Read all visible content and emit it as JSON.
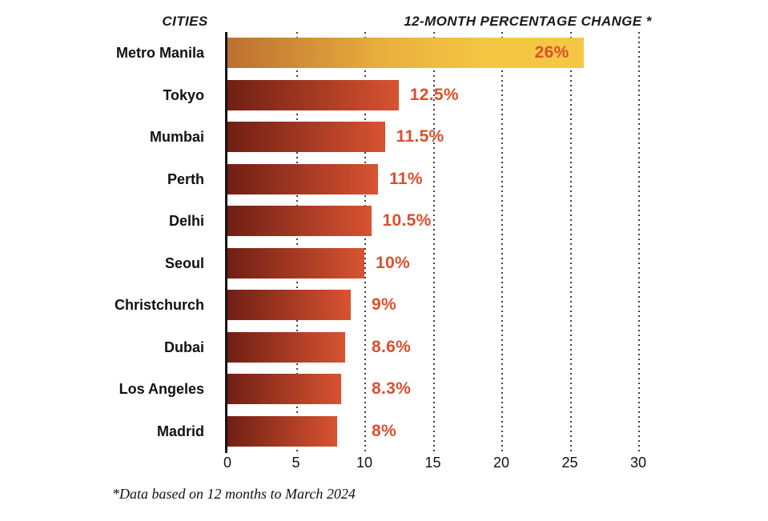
{
  "header": {
    "left_label": "CITIES",
    "right_label": "12-MONTH PERCENTAGE CHANGE *"
  },
  "footnote": "*Data based on 12 months to March 2024",
  "chart_data": {
    "type": "bar",
    "orientation": "horizontal",
    "title": "12-MONTH PERCENTAGE CHANGE *",
    "categories_label": "CITIES",
    "categories": [
      "Metro Manila",
      "Tokyo",
      "Mumbai",
      "Perth",
      "Delhi",
      "Seoul",
      "Christchurch",
      "Dubai",
      "Los Angeles",
      "Madrid"
    ],
    "values": [
      26,
      12.5,
      11.5,
      11,
      10.5,
      10,
      9,
      8.6,
      8.3,
      8
    ],
    "value_labels": [
      "26%",
      "12.5%",
      "11.5%",
      "11%",
      "10.5%",
      "10%",
      "9%",
      "8.6%",
      "8.3%",
      "8%"
    ],
    "xlim": [
      0,
      30
    ],
    "xticks": [
      0,
      5,
      10,
      15,
      20,
      25,
      30
    ],
    "grid": "vertical-dotted",
    "legend": "none",
    "highlight_index": 0,
    "colors": {
      "bar_gradient_start": "#701F14",
      "bar_gradient_end": "#D85331",
      "highlight_gradient_start": "#BC7031",
      "highlight_gradient_mid": "#EAB13E",
      "highlight_gradient_end": "#F5C843",
      "value_label": "#DB4F2E",
      "axis_text": "#111111",
      "gridline": "#3E3E3E"
    }
  }
}
